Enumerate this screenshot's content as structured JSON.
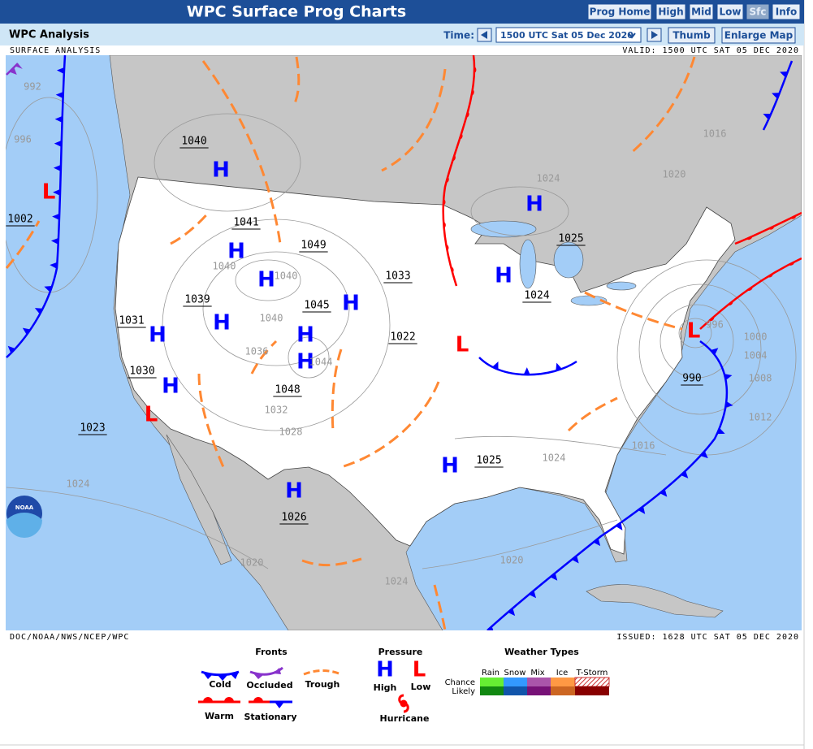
{
  "header": {
    "title": "WPC Surface Prog Charts",
    "buttons": [
      "Prog Home",
      "High",
      "Mid",
      "Low",
      "Sfc",
      "Info"
    ]
  },
  "toolbar": {
    "label": "WPC Analysis",
    "time_label": "Time:",
    "time_value": "1500 UTC Sat 05 Dec 2020",
    "buttons": [
      "Thumb",
      "Enlarge Map"
    ]
  },
  "map": {
    "top_left": "SURFACE ANALYSIS",
    "top_right": "VALID: 1500 UTC SAT 05 DEC 2020",
    "bottom_left": "DOC/NOAA/NWS/NCEP/WPC",
    "bottom_right": "ISSUED: 1628 UTC SAT 05 DEC 2020",
    "logo": "NOAA",
    "centers": [
      {
        "symbol": "H",
        "pressure": 1040
      },
      {
        "symbol": "H",
        "pressure": 1041
      },
      {
        "symbol": "H",
        "pressure": 1049
      },
      {
        "symbol": "H",
        "pressure": 1045
      },
      {
        "symbol": "H",
        "pressure": 1039
      },
      {
        "symbol": "H",
        "pressure": 1048
      },
      {
        "symbol": "H"
      },
      {
        "symbol": "H",
        "pressure": 1031
      },
      {
        "symbol": "H",
        "pressure": 1030
      },
      {
        "symbol": "H",
        "pressure": 1025
      },
      {
        "symbol": "H",
        "pressure": 1024
      },
      {
        "symbol": "H",
        "pressure": 1025
      },
      {
        "symbol": "H",
        "pressure": 1026
      },
      {
        "symbol": "L",
        "pressure": 1002
      },
      {
        "symbol": "L",
        "pressure": 1023
      },
      {
        "symbol": "L",
        "pressure": 1022
      },
      {
        "symbol": "L",
        "pressure": 990
      }
    ],
    "pressure_labels": [
      1033
    ],
    "isobar_labels": [
      992,
      996,
      1016,
      1024,
      1020,
      1040,
      1040,
      1040,
      1036,
      1044,
      1032,
      1028,
      1016,
      1024,
      1000,
      1004,
      1008,
      1012,
      1024,
      1020,
      1020,
      1024,
      996
    ]
  },
  "legend": {
    "fronts": {
      "title": "Fronts",
      "items": [
        "Cold",
        "Occluded",
        "Trough",
        "Warm",
        "Stationary"
      ]
    },
    "pressure": {
      "title": "Pressure",
      "high_symbol": "H",
      "low_symbol": "L",
      "high": "High",
      "low": "Low",
      "hurricane": "Hurricane"
    },
    "weather": {
      "title": "Weather Types",
      "columns": [
        "Rain",
        "Snow",
        "Mix",
        "Ice",
        "T-Storm"
      ],
      "rows": [
        "Chance",
        "Likely"
      ]
    }
  }
}
